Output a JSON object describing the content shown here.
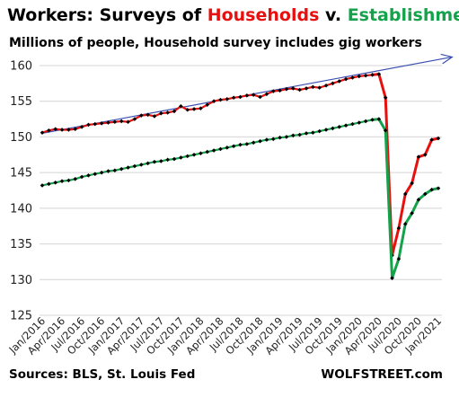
{
  "title": {
    "prefix": "Workers: Surveys of ",
    "households": "Households",
    "connector": " v. ",
    "establishments": "Establishments"
  },
  "subtitle": "Millions of people, Household survey includes gig workers",
  "source": "Sources: BLS, St. Louis Fed",
  "brand": "WOLFSTREET.com",
  "colors": {
    "households": "#e8100e",
    "establishments": "#14a24a",
    "marker": "#000000",
    "trend": "#3a4fb0",
    "grid": "#d4d4d4"
  },
  "chart_data": {
    "type": "line",
    "ylim": [
      125,
      160
    ],
    "yticks": [
      125,
      130,
      135,
      140,
      145,
      150,
      155,
      160
    ],
    "x": [
      "2016-01",
      "2016-02",
      "2016-03",
      "2016-04",
      "2016-05",
      "2016-06",
      "2016-07",
      "2016-08",
      "2016-09",
      "2016-10",
      "2016-11",
      "2016-12",
      "2017-01",
      "2017-02",
      "2017-03",
      "2017-04",
      "2017-05",
      "2017-06",
      "2017-07",
      "2017-08",
      "2017-09",
      "2017-10",
      "2017-11",
      "2017-12",
      "2018-01",
      "2018-02",
      "2018-03",
      "2018-04",
      "2018-05",
      "2018-06",
      "2018-07",
      "2018-08",
      "2018-09",
      "2018-10",
      "2018-11",
      "2018-12",
      "2019-01",
      "2019-02",
      "2019-03",
      "2019-04",
      "2019-05",
      "2019-06",
      "2019-07",
      "2019-08",
      "2019-09",
      "2019-10",
      "2019-11",
      "2019-12",
      "2020-01",
      "2020-02",
      "2020-03",
      "2020-04",
      "2020-05",
      "2020-06",
      "2020-07",
      "2020-08",
      "2020-09",
      "2020-10",
      "2020-11",
      "2020-12",
      "2021-01"
    ],
    "xtick_labels": [
      "Jan/2016",
      "Apr/2016",
      "Jul/2016",
      "Oct/2016",
      "Jan/2017",
      "Apr/2017",
      "Jul/2017",
      "Oct/2017",
      "Jan/2018",
      "Apr/2018",
      "Jul/2018",
      "Oct/2018",
      "Jan/2019",
      "Apr/2019",
      "Jul/2019",
      "Oct/2019",
      "Jan/2020",
      "Apr/2020",
      "Jul/2020",
      "Oct/2020",
      "Jan/2021"
    ],
    "series": [
      {
        "key": "households",
        "values": [
          150.6,
          150.9,
          151.1,
          151.0,
          151.0,
          151.1,
          151.4,
          151.7,
          151.8,
          151.9,
          152.0,
          152.1,
          152.2,
          152.1,
          152.5,
          153.0,
          153.1,
          152.9,
          153.3,
          153.4,
          153.6,
          154.3,
          153.8,
          153.9,
          154.0,
          154.5,
          155.0,
          155.2,
          155.3,
          155.5,
          155.6,
          155.8,
          155.9,
          155.6,
          156.0,
          156.4,
          156.5,
          156.7,
          156.8,
          156.6,
          156.8,
          157.0,
          156.9,
          157.2,
          157.5,
          157.8,
          158.1,
          158.3,
          158.5,
          158.6,
          158.7,
          158.8,
          155.5,
          133.4,
          137.2,
          142.0,
          143.5,
          147.2,
          147.5,
          149.6,
          149.8
        ]
      },
      {
        "key": "establishments",
        "values": [
          143.2,
          143.4,
          143.6,
          143.8,
          143.9,
          144.1,
          144.4,
          144.6,
          144.8,
          145.0,
          145.2,
          145.3,
          145.5,
          145.7,
          145.9,
          146.1,
          146.3,
          146.5,
          146.6,
          146.8,
          146.9,
          147.1,
          147.3,
          147.5,
          147.7,
          147.9,
          148.1,
          148.3,
          148.5,
          148.7,
          148.9,
          149.0,
          149.2,
          149.4,
          149.6,
          149.7,
          149.9,
          150.0,
          150.2,
          150.3,
          150.5,
          150.6,
          150.8,
          151.0,
          151.2,
          151.4,
          151.6,
          151.8,
          152.0,
          152.2,
          152.4,
          152.5,
          150.9,
          130.2,
          132.9,
          137.8,
          139.3,
          141.2,
          142.0,
          142.6,
          142.8
        ]
      }
    ],
    "trend": {
      "from": [
        "2016-01",
        150.5
      ],
      "to": [
        "2021-02",
        161.2
      ]
    }
  }
}
